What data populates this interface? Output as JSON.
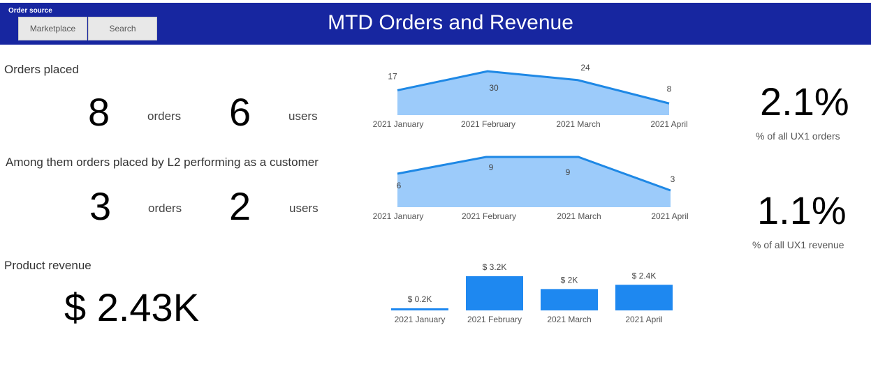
{
  "header": {
    "slicer_title": "Order source",
    "buttons": [
      {
        "label": "Marketplace"
      },
      {
        "label": "Search"
      }
    ],
    "title": "MTD Orders and Revenue"
  },
  "orders_section": {
    "title": "Orders placed",
    "orders_value": "8",
    "orders_unit": "orders",
    "users_value": "6",
    "users_unit": "users"
  },
  "l2_section": {
    "title": "Among them orders placed by L2 performing as a customer",
    "orders_value": "3",
    "orders_unit": "orders",
    "users_value": "2",
    "users_unit": "users"
  },
  "revenue_section": {
    "title": "Product revenue",
    "value": "$ 2.43K"
  },
  "kpis": {
    "orders_pct": {
      "value": "2.1%",
      "label": "% of all UX1 orders"
    },
    "revenue_pct": {
      "value": "1.1%",
      "label": "% of all UX1 revenue"
    }
  },
  "colors": {
    "header_bg": "#1726a0",
    "area_fill": "#9ccbfa",
    "line": "#1e88e5",
    "bar": "#1e88f0"
  },
  "chart_data": [
    {
      "type": "area",
      "categories": [
        "2021 January",
        "2021 February",
        "2021 March",
        "2021 April"
      ],
      "values": [
        17,
        30,
        24,
        8
      ],
      "data_labels": [
        "17",
        "30",
        "24",
        "8"
      ],
      "ylim": [
        0,
        32
      ]
    },
    {
      "type": "area",
      "categories": [
        "2021 January",
        "2021 February",
        "2021 March",
        "2021 April"
      ],
      "values": [
        6,
        9,
        9,
        3
      ],
      "data_labels": [
        "6",
        "9",
        "9",
        "3"
      ],
      "ylim": [
        0,
        9
      ]
    },
    {
      "type": "bar",
      "categories": [
        "2021 January",
        "2021 February",
        "2021 March",
        "2021 April"
      ],
      "values": [
        0.2,
        3.2,
        2.0,
        2.4
      ],
      "data_labels": [
        "$ 0.2K",
        "$ 3.2K",
        "$ 2K",
        "$ 2.4K"
      ],
      "ylim": [
        0,
        3.2
      ]
    }
  ]
}
